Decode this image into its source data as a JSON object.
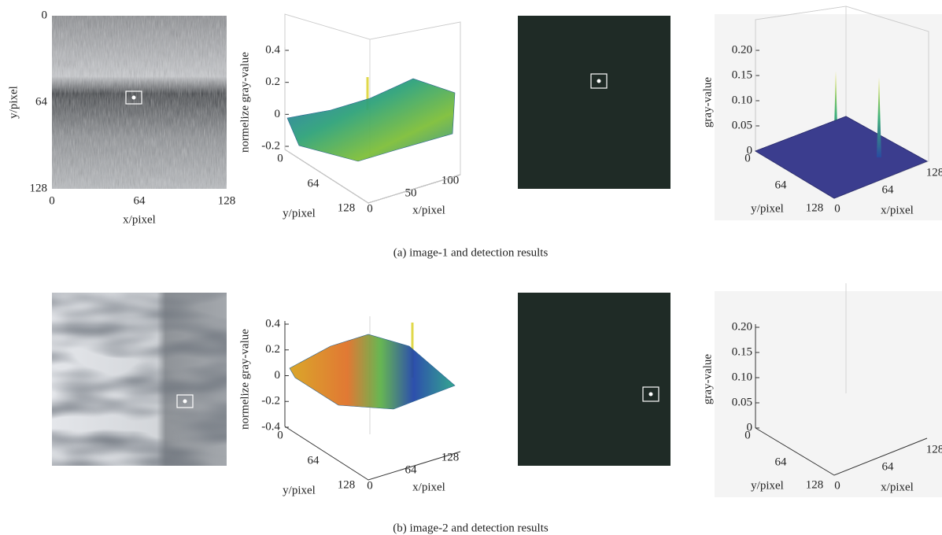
{
  "rows": [
    {
      "caption": "(a)  image-1 and detection results",
      "image": {
        "y_label": "y/pixel",
        "x_label": "x/pixel",
        "y_ticks": [
          "0",
          "64",
          "128"
        ],
        "x_ticks": [
          "0",
          "64",
          "128"
        ]
      },
      "surface": {
        "z_label": "normelize gray-value",
        "z_ticks": [
          "0.4",
          "0.2",
          "0",
          "-0.2"
        ],
        "y_label": "y/pixel",
        "y_ticks": [
          "0",
          "64",
          "128"
        ],
        "x_label": "x/pixel",
        "x_ticks": [
          "0",
          "50",
          "100"
        ]
      },
      "result": {
        "z_label": "gray-value",
        "z_ticks": [
          "0.20",
          "0.15",
          "0.10",
          "0.05",
          "0"
        ],
        "y_label": "y/pixel",
        "y_ticks": [
          "0",
          "64",
          "128"
        ],
        "x_label": "x/pixel",
        "x_ticks": [
          "0",
          "64",
          "128"
        ]
      }
    },
    {
      "caption": "(b)  image-2 and detection results",
      "surface": {
        "z_label": "normelize gray-value",
        "z_ticks": [
          "0.4",
          "0.2",
          "0",
          "-0.2",
          "-0.4"
        ],
        "y_label": "y/pixel",
        "y_ticks": [
          "0",
          "64",
          "128"
        ],
        "x_label": "x/pixel",
        "x_ticks": [
          "0",
          "64",
          "128"
        ]
      },
      "result": {
        "z_label": "gray-value",
        "z_ticks": [
          "0.20",
          "0.15",
          "0.10",
          "0.05",
          "0"
        ],
        "y_label": "y/pixel",
        "y_ticks": [
          "0",
          "64",
          "128"
        ],
        "x_label": "x/pixel",
        "x_ticks": [
          "0",
          "64",
          "128"
        ]
      }
    }
  ]
}
